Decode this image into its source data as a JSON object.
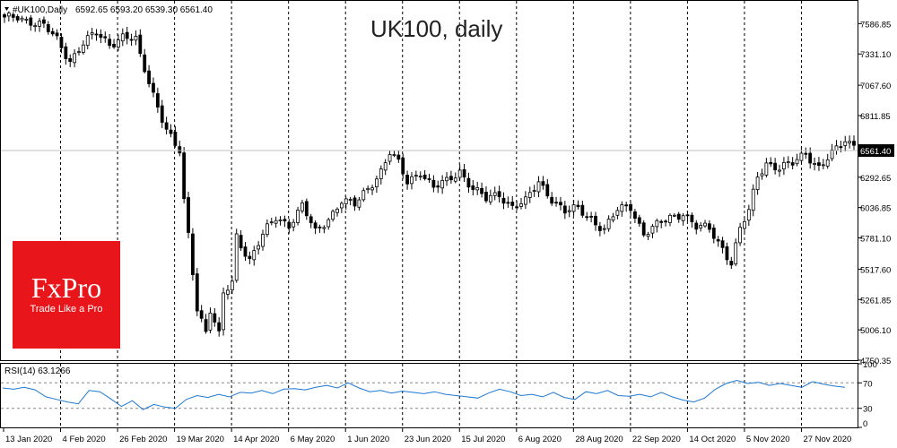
{
  "header": {
    "symbol": "#UK100,Daily",
    "ohlc": "6592.65 6593.20 6539.30 6561.40",
    "title": "UK100, daily"
  },
  "indicator": {
    "label": "RSI(14) 63.1266"
  },
  "price_badge": "6561.40",
  "logo": {
    "name": "FxPro",
    "tagline": "Trade Like a Pro",
    "color": "#e8151b"
  },
  "colors": {
    "candle": "#000000",
    "rsi_line": "#1e78d2",
    "badge": "#000000",
    "grid": "#000000"
  },
  "chart_data": [
    {
      "type": "candlestick",
      "title": "UK100, daily",
      "y_tick_labels": [
        "7586.85",
        "7331.10",
        "7067.60",
        "6811.85",
        "6561.40",
        "6292.65",
        "6036.85",
        "5781.10",
        "5517.60",
        "5261.85",
        "5006.10",
        "4750.35"
      ],
      "x_tick_labels": [
        "13 Jan 2020",
        "4 Feb 2020",
        "26 Feb 2020",
        "19 Mar 2020",
        "14 Apr 2020",
        "6 May 2020",
        "1 Jun 2020",
        "23 Jun 2020",
        "15 Jul 2020",
        "6 Aug 2020",
        "28 Aug 2020",
        "22 Sep 2020",
        "14 Oct 2020",
        "5 Nov 2020",
        "27 Nov 2020"
      ],
      "ylim": [
        4750.35,
        7650
      ],
      "last_price": 6561.4,
      "close_path": [
        [
          0,
          7620
        ],
        [
          3,
          7650
        ],
        [
          6,
          7610
        ],
        [
          9,
          7560
        ],
        [
          12,
          7450
        ],
        [
          15,
          7280
        ],
        [
          18,
          7420
        ],
        [
          21,
          7500
        ],
        [
          24,
          7420
        ],
        [
          27,
          7480
        ],
        [
          30,
          7440
        ],
        [
          31,
          7300
        ],
        [
          33,
          7100
        ],
        [
          35,
          6900
        ],
        [
          37,
          6700
        ],
        [
          39,
          6550
        ],
        [
          40,
          6500
        ],
        [
          41,
          6080
        ],
        [
          42,
          5800
        ],
        [
          44,
          5200
        ],
        [
          46,
          5000
        ],
        [
          47,
          5180
        ],
        [
          49,
          4950
        ],
        [
          50,
          5300
        ],
        [
          52,
          5400
        ],
        [
          53,
          5800
        ],
        [
          56,
          5600
        ],
        [
          59,
          5800
        ],
        [
          62,
          5950
        ],
        [
          65,
          5900
        ],
        [
          68,
          6050
        ],
        [
          71,
          5820
        ],
        [
          74,
          5950
        ],
        [
          77,
          6100
        ],
        [
          80,
          6050
        ],
        [
          83,
          6200
        ],
        [
          86,
          6350
        ],
        [
          88,
          6500
        ],
        [
          90,
          6400
        ],
        [
          92,
          6250
        ],
        [
          95,
          6350
        ],
        [
          98,
          6200
        ],
        [
          101,
          6250
        ],
        [
          104,
          6350
        ],
        [
          107,
          6200
        ],
        [
          110,
          6100
        ],
        [
          113,
          6150
        ],
        [
          116,
          6050
        ],
        [
          119,
          6080
        ],
        [
          122,
          6250
        ],
        [
          125,
          6120
        ],
        [
          128,
          6000
        ],
        [
          131,
          6020
        ],
        [
          134,
          5950
        ],
        [
          137,
          5850
        ],
        [
          140,
          6010
        ],
        [
          143,
          6050
        ],
        [
          146,
          5820
        ],
        [
          149,
          5880
        ],
        [
          152,
          5950
        ],
        [
          155,
          6000
        ],
        [
          158,
          5870
        ],
        [
          161,
          5850
        ],
        [
          164,
          5700
        ],
        [
          166,
          5580
        ],
        [
          168,
          5850
        ],
        [
          170,
          6000
        ],
        [
          172,
          6300
        ],
        [
          174,
          6420
        ],
        [
          177,
          6370
        ],
        [
          180,
          6400
        ],
        [
          183,
          6500
        ],
        [
          186,
          6380
        ],
        [
          189,
          6480
        ],
        [
          192,
          6600
        ],
        [
          194,
          6561
        ]
      ]
    },
    {
      "type": "line",
      "name": "RSI(14)",
      "last_value": 63.1266,
      "y_tick_labels": [
        "100",
        "70",
        "30",
        "0"
      ],
      "ylim": [
        0,
        100
      ],
      "levels": [
        70,
        30
      ],
      "values": [
        62,
        60,
        63,
        59,
        48,
        44,
        40,
        37,
        58,
        56,
        45,
        33,
        42,
        28,
        36,
        32,
        30,
        44,
        50,
        47,
        52,
        48,
        55,
        54,
        58,
        53,
        60,
        61,
        59,
        63,
        66,
        62,
        70,
        62,
        56,
        58,
        54,
        57,
        55,
        53,
        56,
        52,
        50,
        48,
        46,
        54,
        60,
        56,
        50,
        52,
        48,
        55,
        47,
        44,
        56,
        53,
        58,
        50,
        49,
        52,
        48,
        55,
        48,
        43,
        40,
        46,
        60,
        69,
        74,
        69,
        71,
        66,
        69,
        66,
        63,
        72,
        68,
        65,
        63
      ]
    }
  ]
}
